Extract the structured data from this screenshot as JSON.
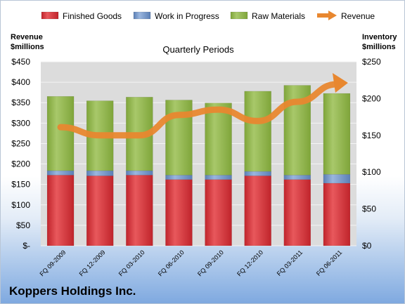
{
  "company": "Koppers Holdings Inc.",
  "colors": {
    "finished_goods": "#c0242b",
    "work_in_progress": "#5b7fb5",
    "raw_materials": "#7fa53a",
    "revenue": "#e8872f"
  },
  "chart_data": {
    "type": "bar",
    "stacked": true,
    "title": "Quarterly Periods",
    "ylabel_left": "Revenue\n$millions",
    "ylabel_right": "Inventory\n$millions",
    "left_axis": {
      "range": [
        0,
        450
      ],
      "ticks": [
        "$-",
        "$50",
        "$100",
        "$150",
        "$200",
        "$250",
        "$300",
        "$350",
        "$400",
        "$450"
      ]
    },
    "right_axis": {
      "range": [
        0,
        250
      ],
      "ticks": [
        "$0",
        "$50",
        "$100",
        "$150",
        "$200",
        "$250"
      ]
    },
    "categories": [
      "FQ 09-2009",
      "FQ 12-2009",
      "FQ 03-2010",
      "FQ 06-2010",
      "FQ 09-2010",
      "FQ 12-2010",
      "FQ 03-2011",
      "FQ 06-2011"
    ],
    "legend_position": "top",
    "grid": true,
    "series": [
      {
        "name": "Finished Goods",
        "axis": "right",
        "kind": "bar",
        "values": [
          96,
          95,
          96,
          90,
          90,
          95,
          90,
          85
        ]
      },
      {
        "name": "Work in Progress",
        "axis": "right",
        "kind": "bar",
        "values": [
          6,
          7,
          6,
          6,
          6,
          6,
          6,
          12
        ]
      },
      {
        "name": "Raw Materials",
        "axis": "right",
        "kind": "bar",
        "values": [
          101,
          95,
          100,
          102,
          98,
          109,
          122,
          110
        ]
      },
      {
        "name": "Revenue",
        "axis": "left",
        "kind": "line",
        "values": [
          290,
          270,
          270,
          320,
          333,
          305,
          352,
          395
        ]
      }
    ]
  }
}
